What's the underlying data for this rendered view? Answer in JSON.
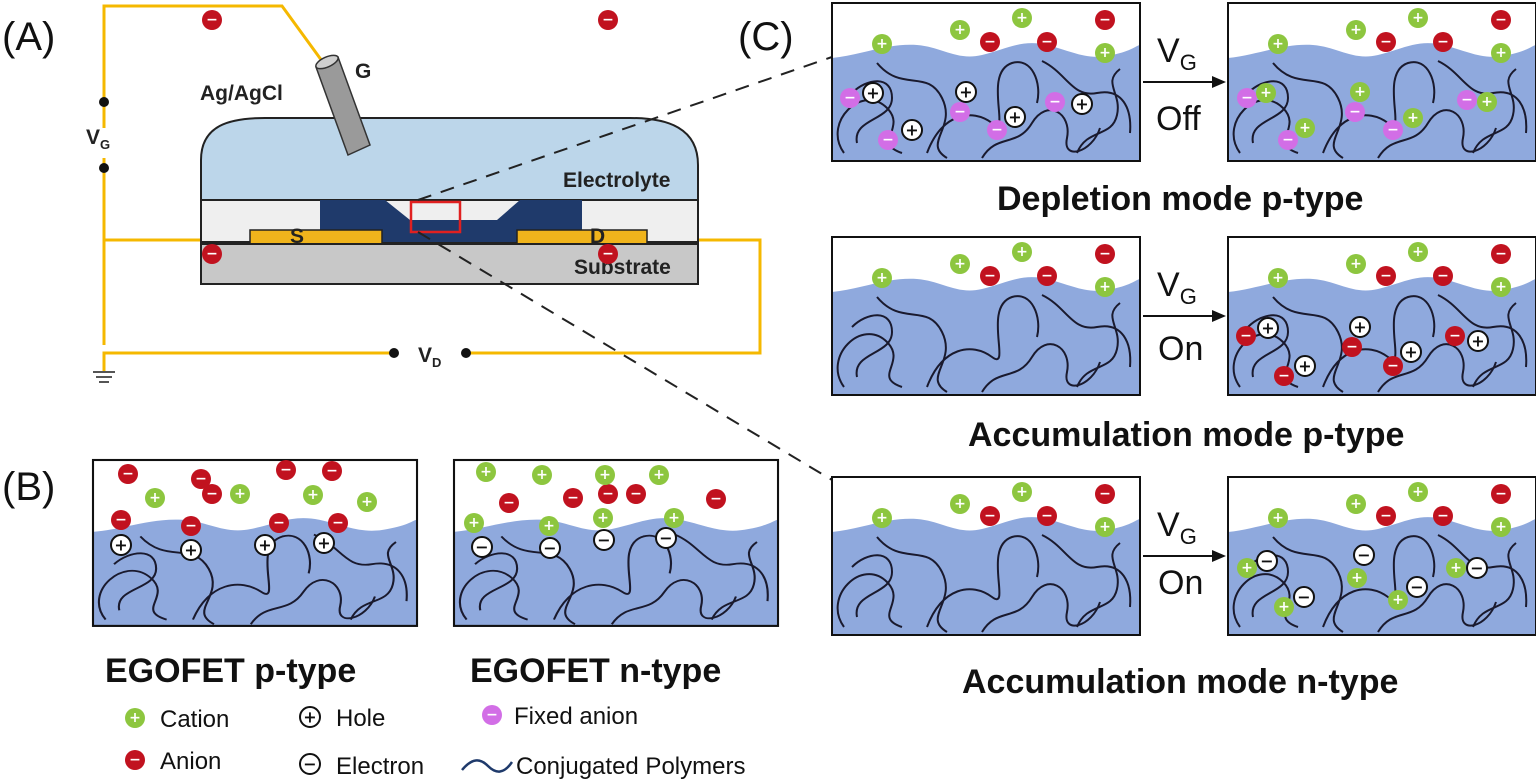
{
  "panels": {
    "a": "(A)",
    "b": "(B)",
    "c": "(C)"
  },
  "device": {
    "reference_electrode": "Ag/AgCl",
    "gate": "G",
    "gate_voltage": "V",
    "gate_voltage_sub": "G",
    "drain_voltage": "V",
    "drain_voltage_sub": "D",
    "electrolyte": "Electrolyte",
    "source": "S",
    "drain": "D",
    "substrate": "Substrate"
  },
  "panel_b": {
    "p_type_caption": "EGOFET p-type",
    "n_type_caption": "EGOFET n-type"
  },
  "panel_c": {
    "rows": [
      {
        "caption": "Depletion mode p-type",
        "arrow_label": "V",
        "arrow_sub": "G",
        "arrow_state": "Off"
      },
      {
        "caption": "Accumulation mode p-type",
        "arrow_label": "V",
        "arrow_sub": "G",
        "arrow_state": "On"
      },
      {
        "caption": "Accumulation mode n-type",
        "arrow_label": "V",
        "arrow_sub": "G",
        "arrow_state": "On"
      }
    ]
  },
  "legend": {
    "cation": "Cation",
    "anion": "Anion",
    "hole": "Hole",
    "electron": "Electron",
    "fixed_anion": "Fixed anion",
    "conjugated_polymers": "Conjugated Polymers"
  },
  "colors": {
    "wire": "#f5b800",
    "electrolyte": "#bcd6ea",
    "polymer": "#8fa9dd",
    "channel": "#1f3a6b",
    "substrate": "#c8c8c8",
    "contact": "#f0b41c",
    "cation": "#8dc63f",
    "anion": "#c1121f",
    "fixed_anion": "#d26ee6",
    "highlight": "#e02020"
  }
}
